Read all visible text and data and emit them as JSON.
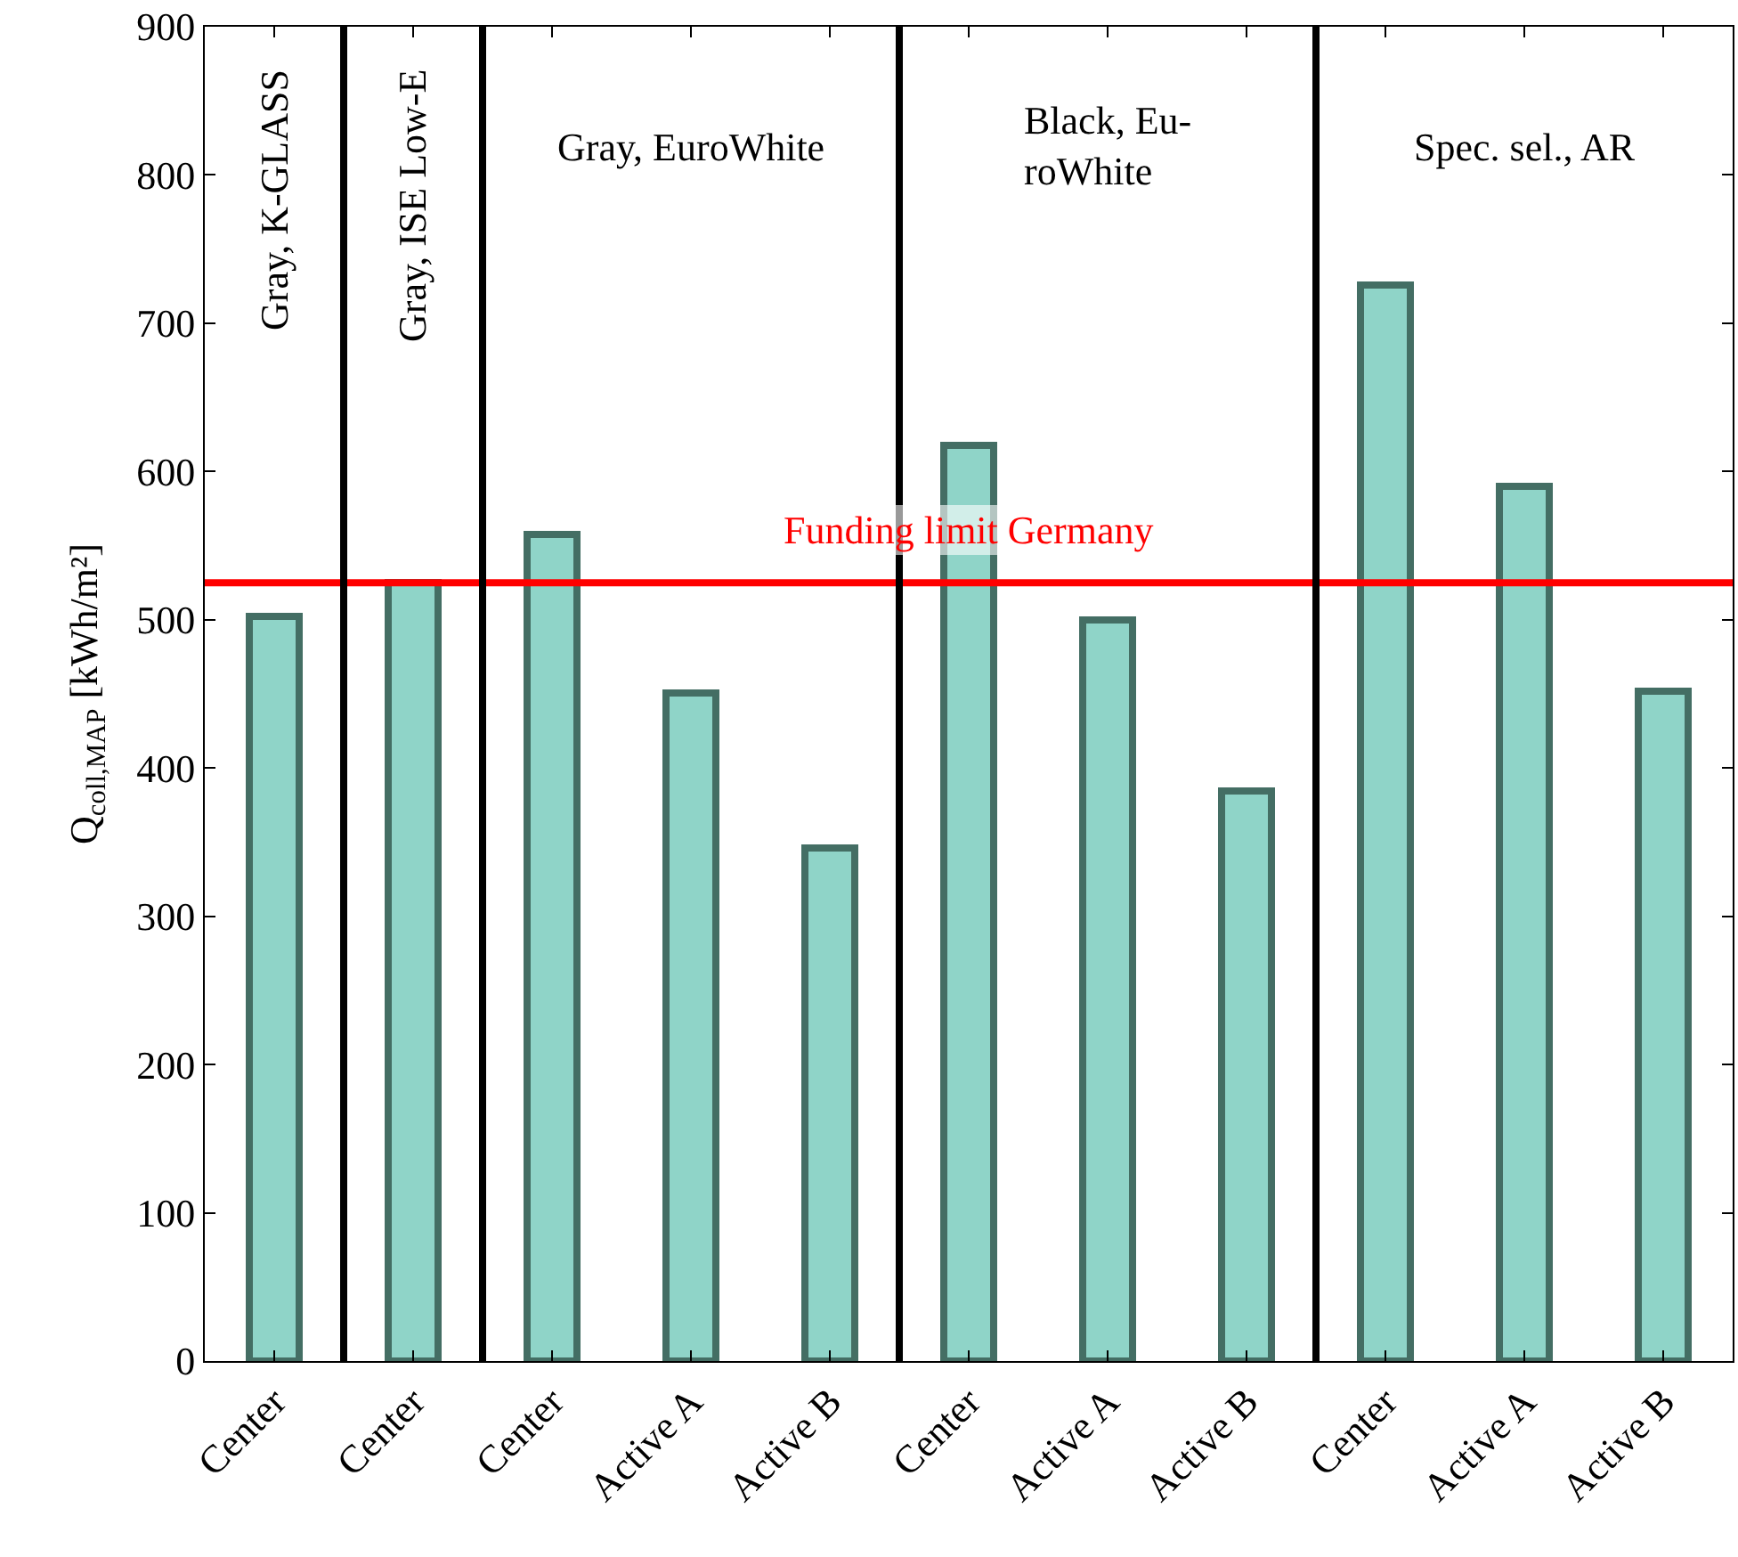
{
  "chart_data": {
    "type": "bar",
    "ylabel": "Q$_{coll,MAP}$ [kWh/m²]",
    "categories": [
      "Center",
      "Center",
      "Center",
      "Active A",
      "Active B",
      "Center",
      "Active A",
      "Active B",
      "Center",
      "Active A",
      "Active B"
    ],
    "values": [
      502,
      525,
      558,
      451,
      346,
      618,
      500,
      385,
      726,
      590,
      452
    ],
    "color": "#8fd4c8",
    "ylim": [
      0,
      900
    ],
    "yticks": [
      0,
      100,
      200,
      300,
      400,
      500,
      600,
      700,
      800,
      900
    ],
    "ref_lines": [
      {
        "axis": "y",
        "value": 525,
        "label": "Funding limit Germany",
        "color": "#ff0000"
      }
    ],
    "annotations": [
      "Gray, K-GLASS",
      "Gray, ISE Low-E",
      "Gray, EuroWhite",
      "Black, Eu-\nroWhite",
      "Spec. sel., AR"
    ]
  }
}
